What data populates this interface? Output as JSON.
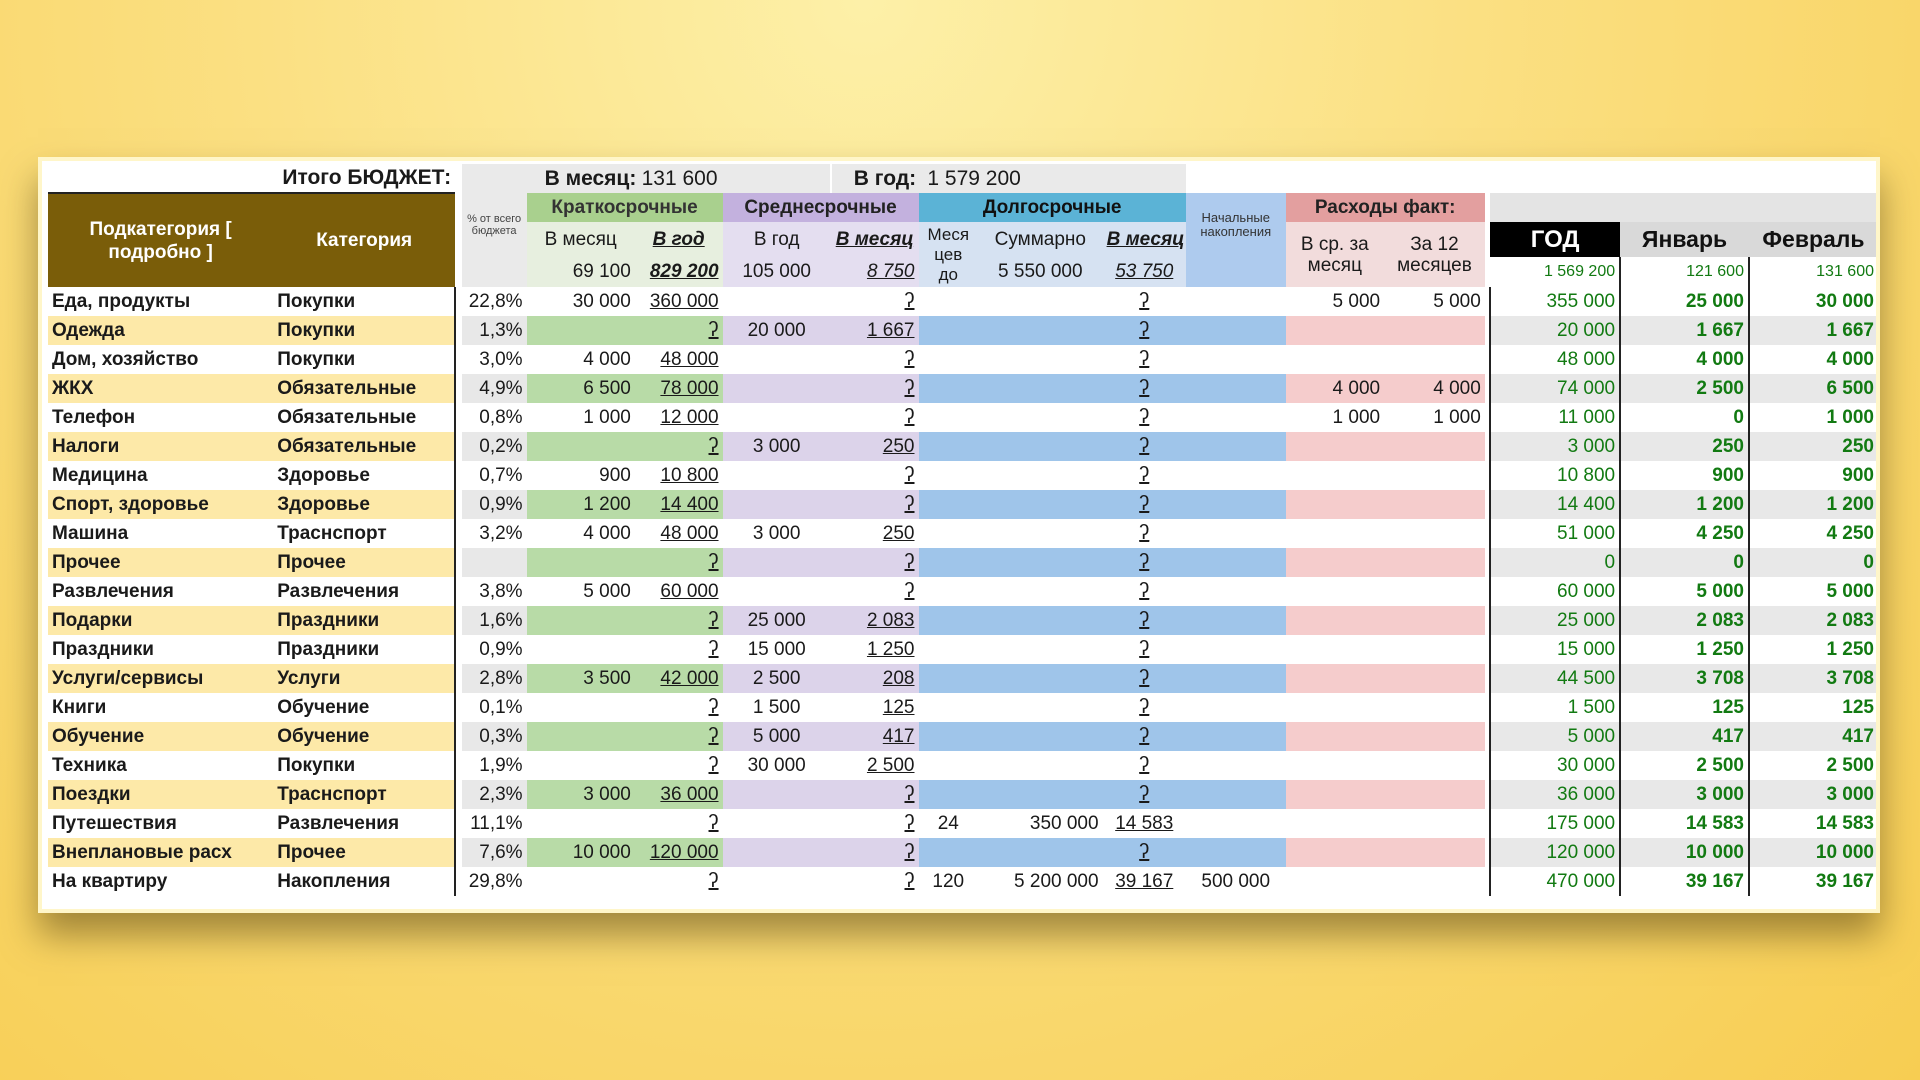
{
  "header": {
    "total_label": "Итого БЮДЖЕТ:",
    "month_label": "В месяц:",
    "month_value": "131 600",
    "year_label": "В год:",
    "year_value": "1 579 200"
  },
  "columns": {
    "subcategory": "Подкатегория [ подробно ]",
    "category": "Категория",
    "pct_header": "% от всего бюджета",
    "short_group": "Краткосрочные",
    "mid_group": "Среднесрочные",
    "long_group": "Долгосрочные",
    "fact_group": "Расходы факт:",
    "short_month": "В месяц",
    "short_year": "В год",
    "mid_year": "В год",
    "mid_month": "В месяц",
    "long_months": "Меся цев до",
    "long_sum": "Суммарно",
    "long_month": "В месяц",
    "initial_savings": "Начальные накопления",
    "fact_avg": "В ср. за месяц",
    "fact_12": "За 12 месяцев",
    "year": "ГОД",
    "jan": "Январь",
    "feb": "Февраль"
  },
  "subtotals": {
    "short_month": "69 100",
    "short_year": "829 200",
    "mid_year": "105 000",
    "mid_month": "8 750",
    "long_sum": "5 550 000",
    "long_month": "53 750",
    "year": "1 569 200",
    "jan": "121 600",
    "feb": "131 600"
  },
  "icon_glyph": "ʔ",
  "rows": [
    {
      "name": "Еда, продукты",
      "cat": "Покупки",
      "pct": "22,8%",
      "sm": "30 000",
      "sy": "360 000",
      "my": "",
      "mm": "ʔ",
      "lmo": "",
      "ls": "",
      "lm": "ʔ",
      "init": "",
      "fa": "5 000",
      "f12": "5 000",
      "yr": "355 000",
      "jan": "25 000",
      "feb": "30 000"
    },
    {
      "name": "Одежда",
      "cat": "Покупки",
      "pct": "1,3%",
      "sm": "",
      "sy": "ʔ",
      "my": "20 000",
      "mm": "1 667",
      "lmo": "",
      "ls": "",
      "lm": "ʔ",
      "init": "",
      "fa": "",
      "f12": "",
      "yr": "20 000",
      "jan": "1 667",
      "feb": "1 667"
    },
    {
      "name": "Дом, хозяйство",
      "cat": "Покупки",
      "pct": "3,0%",
      "sm": "4 000",
      "sy": "48 000",
      "my": "",
      "mm": "ʔ",
      "lmo": "",
      "ls": "",
      "lm": "ʔ",
      "init": "",
      "fa": "",
      "f12": "",
      "yr": "48 000",
      "jan": "4 000",
      "feb": "4 000"
    },
    {
      "name": "ЖКХ",
      "cat": "Обязательные",
      "pct": "4,9%",
      "sm": "6 500",
      "sy": "78 000",
      "my": "",
      "mm": "ʔ",
      "lmo": "",
      "ls": "",
      "lm": "ʔ",
      "init": "",
      "fa": "4 000",
      "f12": "4 000",
      "yr": "74 000",
      "jan": "2 500",
      "feb": "6 500"
    },
    {
      "name": "Телефон",
      "cat": "Обязательные",
      "pct": "0,8%",
      "sm": "1 000",
      "sy": "12 000",
      "my": "",
      "mm": "ʔ",
      "lmo": "",
      "ls": "",
      "lm": "ʔ",
      "init": "",
      "fa": "1 000",
      "f12": "1 000",
      "yr": "11 000",
      "jan": "0",
      "feb": "1 000"
    },
    {
      "name": "Налоги",
      "cat": "Обязательные",
      "pct": "0,2%",
      "sm": "",
      "sy": "ʔ",
      "my": "3 000",
      "mm": "250",
      "lmo": "",
      "ls": "",
      "lm": "ʔ",
      "init": "",
      "fa": "",
      "f12": "",
      "yr": "3 000",
      "jan": "250",
      "feb": "250"
    },
    {
      "name": "Медицина",
      "cat": "Здоровье",
      "pct": "0,7%",
      "sm": "900",
      "sy": "10 800",
      "my": "",
      "mm": "ʔ",
      "lmo": "",
      "ls": "",
      "lm": "ʔ",
      "init": "",
      "fa": "",
      "f12": "",
      "yr": "10 800",
      "jan": "900",
      "feb": "900"
    },
    {
      "name": "Спорт, здоровье",
      "cat": "Здоровье",
      "pct": "0,9%",
      "sm": "1 200",
      "sy": "14 400",
      "my": "",
      "mm": "ʔ",
      "lmo": "",
      "ls": "",
      "lm": "ʔ",
      "init": "",
      "fa": "",
      "f12": "",
      "yr": "14 400",
      "jan": "1 200",
      "feb": "1 200"
    },
    {
      "name": "Машина",
      "cat": "Траснспорт",
      "pct": "3,2%",
      "sm": "4 000",
      "sy": "48 000",
      "my": "3 000",
      "mm": "250",
      "lmo": "",
      "ls": "",
      "lm": "ʔ",
      "init": "",
      "fa": "",
      "f12": "",
      "yr": "51 000",
      "jan": "4 250",
      "feb": "4 250"
    },
    {
      "name": "Прочее",
      "cat": "Прочее",
      "pct": "",
      "sm": "",
      "sy": "ʔ",
      "my": "",
      "mm": "ʔ",
      "lmo": "",
      "ls": "",
      "lm": "ʔ",
      "init": "",
      "fa": "",
      "f12": "",
      "yr": "0",
      "jan": "0",
      "feb": "0"
    },
    {
      "name": "Развлечения",
      "cat": "Развлечения",
      "pct": "3,8%",
      "sm": "5 000",
      "sy": "60 000",
      "my": "",
      "mm": "ʔ",
      "lmo": "",
      "ls": "",
      "lm": "ʔ",
      "init": "",
      "fa": "",
      "f12": "",
      "yr": "60 000",
      "jan": "5 000",
      "feb": "5 000"
    },
    {
      "name": "Подарки",
      "cat": "Праздники",
      "pct": "1,6%",
      "sm": "",
      "sy": "ʔ",
      "my": "25 000",
      "mm": "2 083",
      "lmo": "",
      "ls": "",
      "lm": "ʔ",
      "init": "",
      "fa": "",
      "f12": "",
      "yr": "25 000",
      "jan": "2 083",
      "feb": "2 083"
    },
    {
      "name": "Праздники",
      "cat": "Праздники",
      "pct": "0,9%",
      "sm": "",
      "sy": "ʔ",
      "my": "15 000",
      "mm": "1 250",
      "lmo": "",
      "ls": "",
      "lm": "ʔ",
      "init": "",
      "fa": "",
      "f12": "",
      "yr": "15 000",
      "jan": "1 250",
      "feb": "1 250"
    },
    {
      "name": "Услуги/сервисы",
      "cat": "Услуги",
      "pct": "2,8%",
      "sm": "3 500",
      "sy": "42 000",
      "my": "2 500",
      "mm": "208",
      "lmo": "",
      "ls": "",
      "lm": "ʔ",
      "init": "",
      "fa": "",
      "f12": "",
      "yr": "44 500",
      "jan": "3 708",
      "feb": "3 708"
    },
    {
      "name": "Книги",
      "cat": "Обучение",
      "pct": "0,1%",
      "sm": "",
      "sy": "ʔ",
      "my": "1 500",
      "mm": "125",
      "lmo": "",
      "ls": "",
      "lm": "ʔ",
      "init": "",
      "fa": "",
      "f12": "",
      "yr": "1 500",
      "jan": "125",
      "feb": "125"
    },
    {
      "name": "Обучение",
      "cat": "Обучение",
      "pct": "0,3%",
      "sm": "",
      "sy": "ʔ",
      "my": "5 000",
      "mm": "417",
      "lmo": "",
      "ls": "",
      "lm": "ʔ",
      "init": "",
      "fa": "",
      "f12": "",
      "yr": "5 000",
      "jan": "417",
      "feb": "417"
    },
    {
      "name": "Техника",
      "cat": "Покупки",
      "pct": "1,9%",
      "sm": "",
      "sy": "ʔ",
      "my": "30 000",
      "mm": "2 500",
      "lmo": "",
      "ls": "",
      "lm": "ʔ",
      "init": "",
      "fa": "",
      "f12": "",
      "yr": "30 000",
      "jan": "2 500",
      "feb": "2 500"
    },
    {
      "name": "Поездки",
      "cat": "Траснспорт",
      "pct": "2,3%",
      "sm": "3 000",
      "sy": "36 000",
      "my": "",
      "mm": "ʔ",
      "lmo": "",
      "ls": "",
      "lm": "ʔ",
      "init": "",
      "fa": "",
      "f12": "",
      "yr": "36 000",
      "jan": "3 000",
      "feb": "3 000"
    },
    {
      "name": "Путешествия",
      "cat": "Развлечения",
      "pct": "11,1%",
      "sm": "",
      "sy": "ʔ",
      "my": "",
      "mm": "ʔ",
      "lmo": "24",
      "ls": "350 000",
      "lm": "14 583",
      "init": "",
      "fa": "",
      "f12": "",
      "yr": "175 000",
      "jan": "14 583",
      "feb": "14 583"
    },
    {
      "name": "Внеплановые расх",
      "cat": "Прочее",
      "pct": "7,6%",
      "sm": "10 000",
      "sy": "120 000",
      "my": "",
      "mm": "ʔ",
      "lmo": "",
      "ls": "",
      "lm": "ʔ",
      "init": "",
      "fa": "",
      "f12": "",
      "yr": "120 000",
      "jan": "10 000",
      "feb": "10 000"
    },
    {
      "name": "На квартиру",
      "cat": "Накопления",
      "pct": "29,8%",
      "sm": "",
      "sy": "ʔ",
      "my": "",
      "mm": "ʔ",
      "lmo": "120",
      "ls": "5 200 000",
      "lm": "39 167",
      "init": "500 000",
      "fa": "",
      "f12": "",
      "yr": "470 000",
      "jan": "39 167",
      "feb": "39 167"
    }
  ]
}
